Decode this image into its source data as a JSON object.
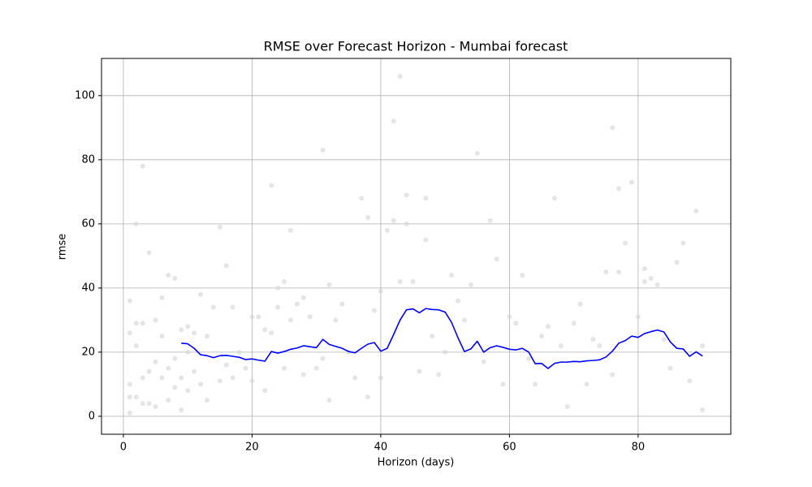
{
  "chart_data": {
    "type": "line",
    "title": "RMSE over Forecast Horizon - Mumbai forecast",
    "xlabel": "Horizon (days)",
    "ylabel": "rmse",
    "xlim": [
      -3.4,
      94.4
    ],
    "ylim": [
      -5.6,
      111.6
    ],
    "xticks": [
      0,
      20,
      40,
      60,
      80
    ],
    "yticks": [
      0,
      20,
      40,
      60,
      80,
      100
    ],
    "grid": true,
    "series": [
      {
        "type": "scatter",
        "color": "#d3d3d3",
        "x": [
          1,
          1,
          1,
          1,
          1,
          2,
          2,
          2,
          2,
          3,
          3,
          3,
          3,
          4,
          4,
          4,
          5,
          5,
          5,
          6,
          6,
          6,
          7,
          7,
          7,
          8,
          8,
          8,
          9,
          9,
          9,
          10,
          10,
          10,
          11,
          11,
          12,
          12,
          13,
          13,
          14,
          15,
          15,
          16,
          16,
          17,
          17,
          18,
          19,
          20,
          20,
          21,
          22,
          22,
          23,
          23,
          24,
          24,
          25,
          25,
          26,
          26,
          27,
          28,
          28,
          29,
          30,
          31,
          31,
          32,
          32,
          33,
          34,
          35,
          36,
          37,
          38,
          38,
          39,
          40,
          40,
          41,
          42,
          42,
          43,
          43,
          44,
          44,
          45,
          46,
          47,
          47,
          48,
          49,
          50,
          51,
          52,
          53,
          54,
          55,
          56,
          57,
          58,
          59,
          60,
          61,
          62,
          63,
          64,
          65,
          66,
          67,
          68,
          69,
          70,
          71,
          72,
          73,
          74,
          75,
          76,
          76,
          77,
          77,
          78,
          79,
          80,
          81,
          81,
          82,
          83,
          84,
          85,
          86,
          87,
          88,
          89,
          90,
          90
        ],
        "values": [
          36,
          26,
          10,
          6,
          1,
          60,
          29,
          22,
          6,
          78,
          29,
          12,
          4,
          51,
          14,
          4,
          30,
          17,
          3,
          37,
          25,
          12,
          44,
          15,
          5,
          43,
          18,
          9,
          27,
          12,
          2,
          28,
          20,
          8,
          26,
          14,
          38,
          10,
          25,
          5,
          34,
          59,
          11,
          47,
          16,
          34,
          12,
          20,
          15,
          31,
          11,
          31,
          27,
          8,
          72,
          26,
          40,
          34,
          42,
          15,
          58,
          30,
          35,
          37,
          13,
          31,
          15,
          83,
          18,
          41,
          5,
          30,
          35,
          20,
          12,
          68,
          62,
          6,
          33,
          39,
          12,
          58,
          92,
          61,
          106,
          42,
          69,
          60,
          42,
          14,
          68,
          55,
          25,
          13,
          20,
          44,
          36,
          30,
          41,
          82,
          17,
          61,
          49,
          10,
          31,
          29,
          44,
          18,
          10,
          25,
          28,
          68,
          22,
          3,
          29,
          35,
          10,
          24,
          22,
          45,
          90,
          13,
          71,
          45,
          54,
          73,
          31,
          46,
          42,
          43,
          41,
          24,
          15,
          48,
          54,
          11,
          64,
          22,
          2
        ]
      },
      {
        "type": "line",
        "color": "#0000ff",
        "x": [
          9,
          10,
          11,
          12,
          13,
          14,
          15,
          16,
          17,
          18,
          19,
          20,
          21,
          22,
          23,
          24,
          25,
          26,
          27,
          28,
          29,
          30,
          31,
          32,
          33,
          34,
          35,
          36,
          37,
          38,
          39,
          40,
          41,
          42,
          43,
          44,
          45,
          46,
          47,
          48,
          49,
          50,
          51,
          52,
          53,
          54,
          55,
          56,
          57,
          58,
          59,
          60,
          61,
          62,
          63,
          64,
          65,
          66,
          67,
          68,
          69,
          70,
          71,
          72,
          73,
          74,
          75,
          76,
          77,
          78,
          79,
          80,
          81,
          82,
          83,
          84,
          85,
          86,
          87,
          88,
          89,
          90
        ],
        "values": [
          22.8,
          22.6,
          21.2,
          19.2,
          18.9,
          18.3,
          18.9,
          19.0,
          18.7,
          18.4,
          17.7,
          17.9,
          17.5,
          17.2,
          20.2,
          19.7,
          20.2,
          20.9,
          21.3,
          22.0,
          21.7,
          21.4,
          24.0,
          22.4,
          21.8,
          21.2,
          20.2,
          19.8,
          21.2,
          22.5,
          23.0,
          20.3,
          21.2,
          25.5,
          30.0,
          33.2,
          33.5,
          32.3,
          33.6,
          33.3,
          33.2,
          32.5,
          29.3,
          24.5,
          20.2,
          21.0,
          23.4,
          20.0,
          21.4,
          22.0,
          21.5,
          20.9,
          20.7,
          21.2,
          20.0,
          16.4,
          16.5,
          14.9,
          16.5,
          16.9,
          16.9,
          17.1,
          17.0,
          17.3,
          17.4,
          17.6,
          18.5,
          20.3,
          22.8,
          23.6,
          25.0,
          24.6,
          25.8,
          26.4,
          26.9,
          26.3,
          23.2,
          21.2,
          21.0,
          18.7,
          20.1,
          18.8
        ]
      }
    ]
  }
}
